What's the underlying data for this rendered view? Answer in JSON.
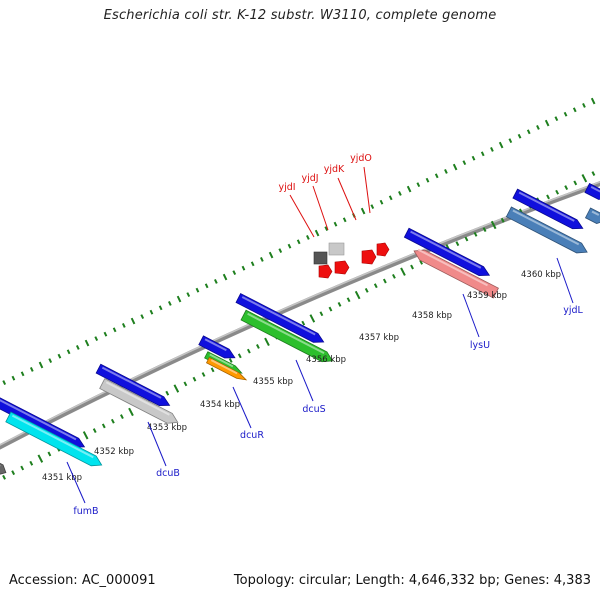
{
  "title": "Escherichia coli str. K-12 substr. W3110, complete genome",
  "footer": {
    "accession": "Accession: AC_000091",
    "topology": "Topology: circular; Length: 4,646,332 bp; Genes: 4,383"
  },
  "colors": {
    "backbone": "#8a8a8a",
    "tick": "#1e7f1e",
    "gene_label": "#1a1ac8",
    "small_gene_label": "#dd1111",
    "kbp_label": "#222222"
  },
  "kbp_labels": [
    "4351 kbp",
    "4352 kbp",
    "4353 kbp",
    "4354 kbp",
    "4355 kbp",
    "4356 kbp",
    "4357 kbp",
    "4358 kbp",
    "4359 kbp",
    "4360 kbp"
  ],
  "gene_labels": [
    "fumB",
    "dcuB",
    "dcuR",
    "dcuS",
    "lysU",
    "yjdL"
  ],
  "small_gene_labels": [
    "yjdI",
    "yjdJ",
    "yjdK",
    "yjdO"
  ]
}
